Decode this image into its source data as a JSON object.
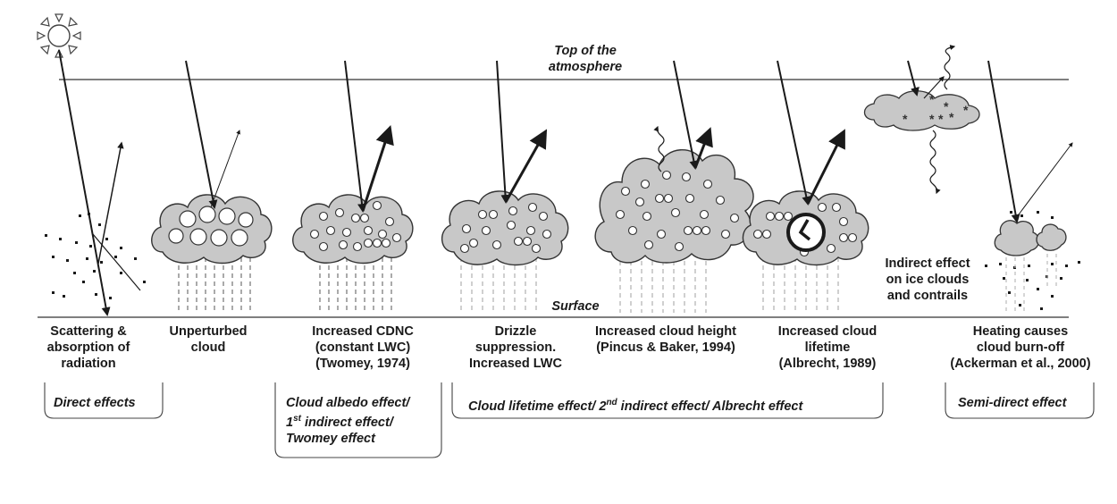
{
  "diagram": {
    "top_label_line1": "Top of the",
    "top_label_line2": "atmosphere",
    "surface_label": "Surface",
    "ice_label": [
      "Indirect effect",
      "on ice clouds",
      "and contrails"
    ],
    "columns": [
      {
        "lines": [
          "Scattering &",
          "absorption of",
          "radiation"
        ]
      },
      {
        "lines": [
          "Unperturbed",
          "cloud"
        ]
      },
      {
        "lines": [
          "Increased CDNC",
          "(constant LWC)",
          "(Twomey, 1974)"
        ]
      },
      {
        "lines": [
          "Drizzle",
          "suppression.",
          "Increased LWC"
        ]
      },
      {
        "lines": [
          "Increased cloud height",
          "(Pincus & Baker, 1994)"
        ]
      },
      {
        "lines": [
          "Increased cloud",
          "lifetime",
          "(Albrecht, 1989)"
        ]
      },
      {
        "lines": [
          "Heating causes",
          "cloud  burn-off",
          "(Ackerman et al., 2000)"
        ]
      }
    ],
    "categories": {
      "direct": "Direct effects",
      "albedo_1": "Cloud albedo effect/",
      "albedo_2a": "1",
      "albedo_2sup": "st",
      "albedo_2b": " indirect effect/",
      "albedo_3": "Twomey effect",
      "lifetime_a": "Cloud lifetime effect/ 2",
      "lifetime_sup": "nd",
      "lifetime_b": " indirect effect/ Albrecht effect",
      "semi": "Semi-direct effect"
    }
  }
}
